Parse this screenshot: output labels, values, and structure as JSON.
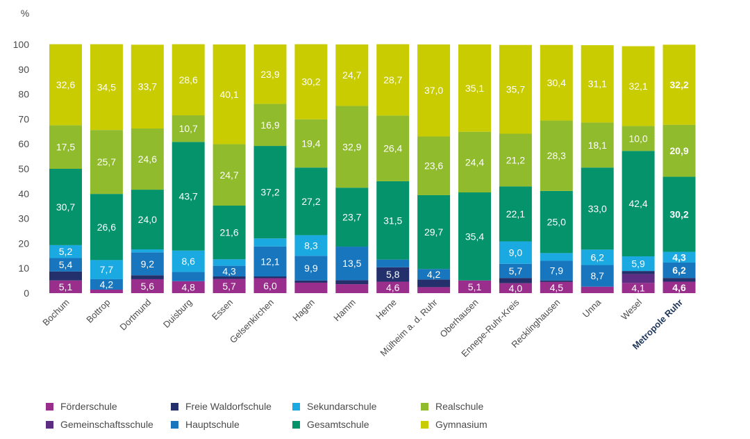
{
  "chart_data": {
    "type": "bar",
    "stacked": true,
    "y_unit": "%",
    "ylim": [
      0,
      100
    ],
    "y_ticks": [
      0,
      10,
      20,
      30,
      40,
      50,
      60,
      70,
      80,
      90,
      100
    ],
    "grid": false,
    "legend_position": "bottom",
    "categories": [
      "Bochum",
      "Bottrop",
      "Dortmund",
      "Duisburg",
      "Essen",
      "Gelsenkirchen",
      "Hagen",
      "Hamm",
      "Herne",
      "Mülheim a. d. Ruhr",
      "Oberhausen",
      "Ennepe-Ruhr-Kreis",
      "Recklinghausen",
      "Unna",
      "Wesel",
      "Metropole Ruhr"
    ],
    "highlight_category": "Metropole Ruhr",
    "series": [
      {
        "name": "Förderschule",
        "color": "#9a2e8c",
        "values": [
          5.1,
          1.4,
          5.6,
          4.8,
          5.7,
          6.0,
          4.2,
          3.6,
          4.6,
          2.4,
          5.1,
          4.0,
          4.5,
          2.6,
          4.1,
          4.6
        ],
        "labels": [
          "5,1",
          "",
          "5,6",
          "4,8",
          "5,7",
          "6,0",
          "",
          "",
          "4,6",
          "",
          "5,1",
          "4,0",
          "4,5",
          "",
          "4,1",
          "4,6"
        ]
      },
      {
        "name": "Gemeinschaftsschule",
        "color": "#5c2d82",
        "values": [
          0,
          0,
          0,
          0,
          0,
          0,
          0,
          0,
          0,
          0,
          0,
          0,
          0,
          0,
          3.6,
          0
        ],
        "labels": [
          "",
          "",
          "",
          "",
          "",
          "",
          "",
          "",
          "",
          "",
          "",
          "",
          "",
          "",
          "",
          ""
        ]
      },
      {
        "name": "Freie Waldorfschule",
        "color": "#24306b",
        "values": [
          3.6,
          0,
          1.6,
          0,
          1.0,
          0.7,
          0.9,
          1.6,
          5.8,
          3.1,
          0,
          2.1,
          0.6,
          0,
          1.2,
          1.5
        ],
        "labels": [
          "",
          "",
          "",
          "",
          "",
          "",
          "",
          "",
          "5,8",
          "",
          "",
          "",
          "",
          "",
          "",
          ""
        ]
      },
      {
        "name": "Hauptschule",
        "color": "#1776bd",
        "values": [
          5.4,
          4.2,
          9.2,
          3.7,
          4.3,
          12.1,
          9.9,
          13.5,
          3.1,
          4.2,
          0,
          5.7,
          7.9,
          8.7,
          0,
          6.2
        ],
        "labels": [
          "5,4",
          "4,2",
          "9,2",
          "",
          "4,3",
          "12,1",
          "9,9",
          "13,5",
          "",
          "4,2",
          "",
          "5,7",
          "7,9",
          "8,7",
          "",
          "6,2"
        ]
      },
      {
        "name": "Sekundarschule",
        "color": "#1aa9e0",
        "values": [
          5.2,
          7.7,
          1.2,
          8.6,
          2.6,
          3.2,
          8.3,
          0,
          0,
          0,
          0,
          9.0,
          3.1,
          6.2,
          5.9,
          4.3
        ],
        "labels": [
          "5,2",
          "7,7",
          "",
          "8,6",
          "",
          "",
          "8,3",
          "",
          "",
          "",
          "",
          "9,0",
          "",
          "6,2",
          "5,9",
          "4,3"
        ]
      },
      {
        "name": "Gesamtschule",
        "color": "#05936c",
        "values": [
          30.7,
          26.6,
          24.0,
          43.7,
          21.6,
          37.2,
          27.2,
          23.7,
          31.5,
          29.7,
          35.4,
          22.1,
          25.0,
          33.0,
          42.4,
          30.2
        ],
        "labels": [
          "30,7",
          "26,6",
          "24,0",
          "43,7",
          "21,6",
          "37,2",
          "27,2",
          "23,7",
          "31,5",
          "29,7",
          "35,4",
          "22,1",
          "25,0",
          "33,0",
          "42,4",
          "30,2"
        ]
      },
      {
        "name": "Realschule",
        "color": "#8fbb2c",
        "values": [
          17.5,
          25.7,
          24.6,
          10.7,
          24.7,
          16.9,
          19.4,
          32.9,
          26.4,
          23.6,
          24.4,
          21.2,
          28.3,
          18.1,
          10.0,
          20.9
        ],
        "labels": [
          "17,5",
          "25,7",
          "24,6",
          "10,7",
          "24,7",
          "16,9",
          "19,4",
          "32,9",
          "26,4",
          "23,6",
          "24,4",
          "21,2",
          "28,3",
          "18,1",
          "10,0",
          "20,9"
        ]
      },
      {
        "name": "Gymnasium",
        "color": "#c8cc00",
        "values": [
          32.6,
          34.5,
          33.7,
          28.6,
          40.1,
          23.9,
          30.2,
          24.7,
          28.7,
          37.0,
          35.1,
          35.7,
          30.4,
          31.1,
          32.1,
          32.2
        ],
        "labels": [
          "32,6",
          "34,5",
          "33,7",
          "28,6",
          "40,1",
          "23,9",
          "30,2",
          "24,7",
          "28,7",
          "37,0",
          "35,1",
          "35,7",
          "30,4",
          "31,1",
          "32,1",
          "32,2"
        ]
      }
    ]
  },
  "legend": {
    "row1": [
      "Förderschule",
      "Freie Waldorfschule",
      "Sekundarschule",
      "Realschule"
    ],
    "row2": [
      "Gemeinschaftsschule",
      "Hauptschule",
      "Gesamtschule",
      "Gymnasium"
    ]
  },
  "colors": {
    "Förderschule": "#9a2e8c",
    "Gemeinschaftsschule": "#5c2d82",
    "Freie Waldorfschule": "#24306b",
    "Hauptschule": "#1776bd",
    "Sekundarschule": "#1aa9e0",
    "Gesamtschule": "#05936c",
    "Realschule": "#8fbb2c",
    "Gymnasium": "#c8cc00",
    "axis_text": "#4a4a4a",
    "highlight_text": "#1d3557"
  }
}
